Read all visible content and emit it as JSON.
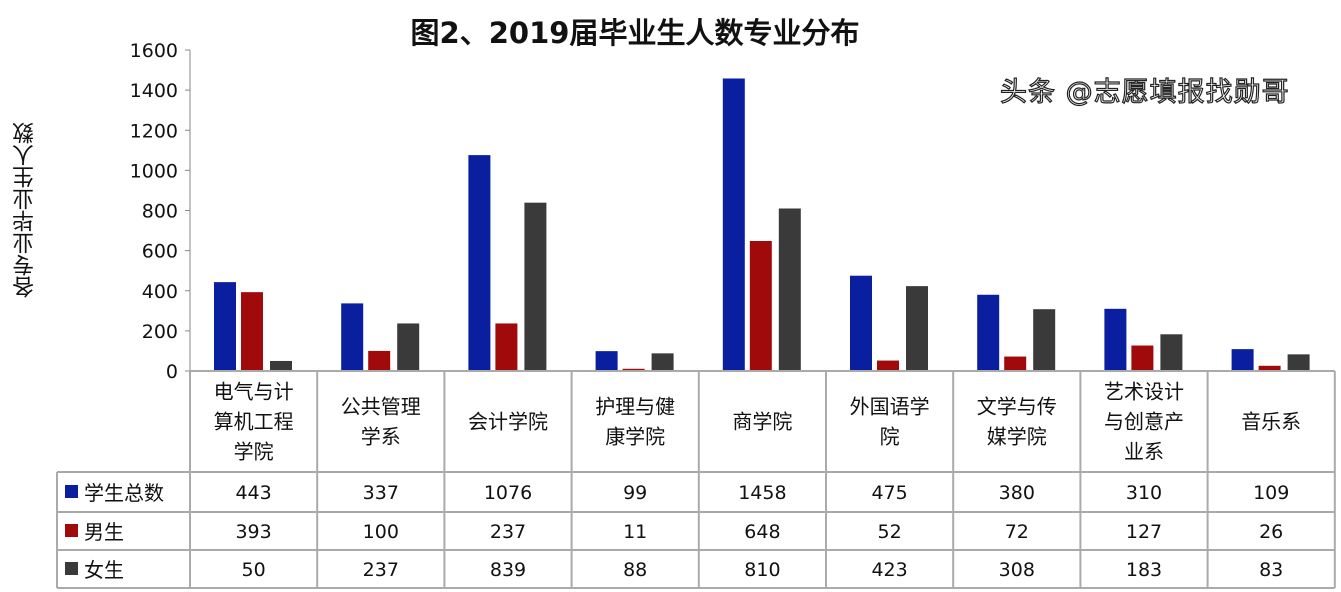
{
  "chart_data": {
    "type": "bar",
    "title": "图2、2019届毕业生人数专业分布",
    "ylabel": "各专业毕业生人数",
    "ylim": [
      0,
      1600
    ],
    "yticks": [
      0,
      200,
      400,
      600,
      800,
      1000,
      1200,
      1400,
      1600
    ],
    "grid": false,
    "legend": "data-table",
    "categories": [
      [
        "电气与计",
        "算机工程",
        "学院"
      ],
      [
        "公共管理",
        "学系"
      ],
      [
        "会计学院"
      ],
      [
        "护理与健",
        "康学院"
      ],
      [
        "商学院"
      ],
      [
        "外国语学",
        "院"
      ],
      [
        "文学与传",
        "媒学院"
      ],
      [
        "艺术设计",
        "与创意产",
        "业系"
      ],
      [
        "音乐系"
      ]
    ],
    "series": [
      {
        "name": "学生总数",
        "color": "#0a1fa0",
        "values": [
          443,
          337,
          1076,
          99,
          1458,
          475,
          380,
          310,
          109
        ]
      },
      {
        "name": "男生",
        "color": "#a00a0a",
        "values": [
          393,
          100,
          237,
          11,
          648,
          52,
          72,
          127,
          26
        ]
      },
      {
        "name": "女生",
        "color": "#3a3a3a",
        "values": [
          50,
          237,
          839,
          88,
          810,
          423,
          308,
          183,
          83
        ]
      }
    ]
  },
  "watermark": "头条 @志愿填报找勋哥"
}
